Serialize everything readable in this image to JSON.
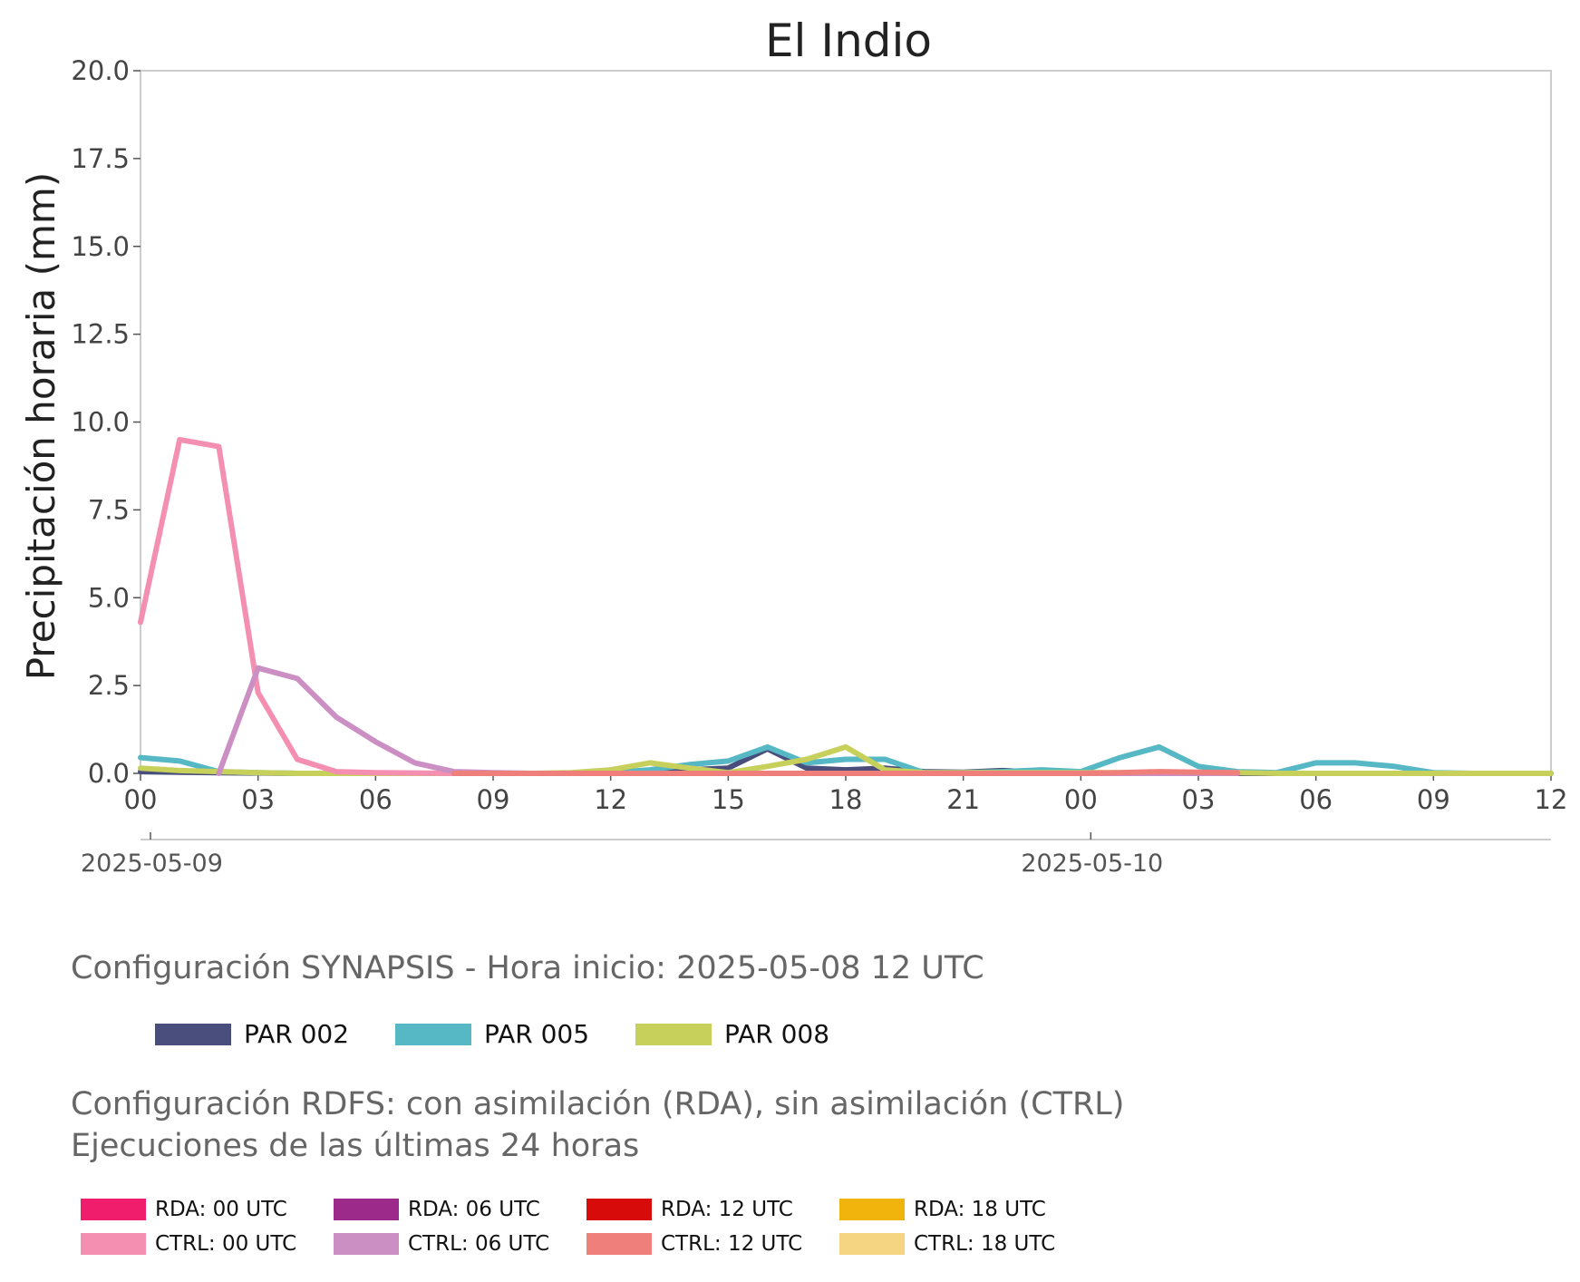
{
  "chart_data": {
    "type": "line",
    "title": "El Indio",
    "ylabel": "Precipitación horaria (mm)",
    "xlabel": "",
    "ylim": [
      0,
      20
    ],
    "yticks": [
      "0.0",
      "2.5",
      "5.0",
      "7.5",
      "10.0",
      "12.5",
      "15.0",
      "17.5",
      "20.0"
    ],
    "x_start": "2025-05-09 00",
    "xlim_hours": [
      0,
      36
    ],
    "xticks": [
      "00",
      "03",
      "06",
      "09",
      "12",
      "15",
      "18",
      "21",
      "00",
      "03",
      "06",
      "09",
      "12"
    ],
    "date_labels": [
      "2025-05-09",
      "2025-05-10"
    ],
    "grid": false,
    "series": [
      {
        "name": "PAR 002",
        "color": "#4a4e7c",
        "x": [
          0,
          1,
          2,
          3,
          4,
          5,
          6,
          7,
          8,
          9,
          10,
          11,
          12,
          13,
          14,
          15,
          16,
          17,
          18,
          19,
          20,
          21,
          22,
          23,
          24,
          25,
          26,
          27,
          28,
          29,
          30,
          31,
          32,
          33,
          34,
          35,
          36
        ],
        "values": [
          0.05,
          0.03,
          0.02,
          0.01,
          0,
          0,
          0,
          0,
          0,
          0,
          0,
          0,
          0.02,
          0.05,
          0.1,
          0.15,
          0.7,
          0.15,
          0.1,
          0.15,
          0.05,
          0.03,
          0.08,
          0.03,
          0.02,
          0.01,
          0,
          0,
          0,
          0,
          0,
          0,
          0,
          0,
          0,
          0,
          0
        ]
      },
      {
        "name": "PAR 005",
        "color": "#56b8c4",
        "x": [
          0,
          1,
          2,
          3,
          4,
          5,
          6,
          7,
          8,
          9,
          10,
          11,
          12,
          13,
          14,
          15,
          16,
          17,
          18,
          19,
          20,
          21,
          22,
          23,
          24,
          25,
          26,
          27,
          28,
          29,
          30,
          31,
          32,
          33,
          34,
          35,
          36
        ],
        "values": [
          0.45,
          0.35,
          0.05,
          0.02,
          0,
          0,
          0,
          0,
          0,
          0,
          0,
          0,
          0.02,
          0.1,
          0.25,
          0.35,
          0.75,
          0.3,
          0.4,
          0.4,
          0.02,
          0.02,
          0.05,
          0.1,
          0.05,
          0.45,
          0.75,
          0.2,
          0.05,
          0.02,
          0.3,
          0.3,
          0.2,
          0.02,
          0,
          0,
          0
        ]
      },
      {
        "name": "PAR 008",
        "color": "#c8d05c",
        "x": [
          0,
          1,
          2,
          3,
          4,
          5,
          6,
          7,
          8,
          9,
          10,
          11,
          12,
          13,
          14,
          15,
          16,
          17,
          18,
          19,
          20,
          21,
          22,
          23,
          24,
          25,
          26,
          27,
          28,
          29,
          30,
          31,
          32,
          33,
          34,
          35,
          36
        ],
        "values": [
          0.15,
          0.08,
          0.05,
          0.02,
          0,
          0,
          0,
          0,
          0,
          0,
          0,
          0.02,
          0.1,
          0.3,
          0.15,
          0.02,
          0.2,
          0.4,
          0.75,
          0.1,
          0.02,
          0.02,
          0.02,
          0.02,
          0.02,
          0.02,
          0.02,
          0.02,
          0.02,
          0,
          0,
          0,
          0,
          0,
          0,
          0,
          0
        ]
      },
      {
        "name": "CTRL: 00 UTC",
        "color": "#f48fb1",
        "x": [
          0,
          1,
          2,
          3,
          4,
          5,
          6,
          7,
          8,
          9,
          10,
          11,
          12,
          13,
          14,
          15,
          16,
          17,
          18,
          19,
          20,
          21,
          22,
          23,
          24,
          25,
          26,
          27,
          28
        ],
        "values": [
          4.3,
          9.5,
          9.3,
          2.3,
          0.4,
          0.05,
          0.02,
          0.01,
          0,
          0,
          0,
          0,
          0,
          0,
          0,
          0,
          0,
          0,
          0,
          0,
          0,
          0,
          0,
          0,
          0,
          0,
          0.02,
          0.02,
          0.02
        ]
      },
      {
        "name": "CTRL: 06 UTC",
        "color": "#cc8fc4",
        "x": [
          2,
          3,
          4,
          5,
          6,
          7,
          8,
          9,
          10,
          11,
          12,
          13,
          14,
          15,
          16,
          17,
          18,
          19,
          20,
          21,
          22,
          23,
          24,
          25,
          26,
          27,
          28
        ],
        "values": [
          0,
          3.0,
          2.7,
          1.6,
          0.9,
          0.3,
          0.05,
          0.02,
          0,
          0,
          0,
          0,
          0,
          0,
          0,
          0,
          0,
          0,
          0,
          0,
          0,
          0,
          0,
          0,
          0,
          0,
          0
        ]
      },
      {
        "name": "CTRL: 12 UTC",
        "color": "#ee7f7a",
        "x": [
          8,
          9,
          10,
          11,
          12,
          13,
          14,
          15,
          16,
          17,
          18,
          19,
          20,
          21,
          22,
          23,
          24,
          25,
          26,
          27,
          28
        ],
        "values": [
          0,
          0,
          0,
          0,
          0,
          0,
          0,
          0,
          0,
          0,
          0,
          0,
          0,
          0,
          0,
          0,
          0,
          0.02,
          0.05,
          0.03,
          0.02
        ]
      }
    ]
  },
  "synapsis": {
    "title": "Configuración SYNAPSIS - Hora inicio: 2025-05-08 12 UTC",
    "legend": [
      {
        "label": "PAR 002",
        "color": "#4a4e7c"
      },
      {
        "label": "PAR 005",
        "color": "#56b8c4"
      },
      {
        "label": "PAR 008",
        "color": "#c8d05c"
      }
    ]
  },
  "rdfs": {
    "title": "Configuración RDFS: con asimilación (RDA), sin asimilación (CTRL)\n Ejecuciones de las últimas 24 horas",
    "legend_rda": [
      {
        "label": "RDA: 00 UTC",
        "color": "#f01c6c"
      },
      {
        "label": "RDA: 06 UTC",
        "color": "#9c2a8a"
      },
      {
        "label": "RDA: 12 UTC",
        "color": "#d80b0b"
      },
      {
        "label": "RDA: 18 UTC",
        "color": "#f0b40c"
      }
    ],
    "legend_ctrl": [
      {
        "label": "CTRL: 00 UTC",
        "color": "#f48fb1"
      },
      {
        "label": "CTRL: 06 UTC",
        "color": "#cc8fc4"
      },
      {
        "label": "CTRL: 12 UTC",
        "color": "#ee7f7a"
      },
      {
        "label": "CTRL: 18 UTC",
        "color": "#f6d582"
      }
    ]
  }
}
